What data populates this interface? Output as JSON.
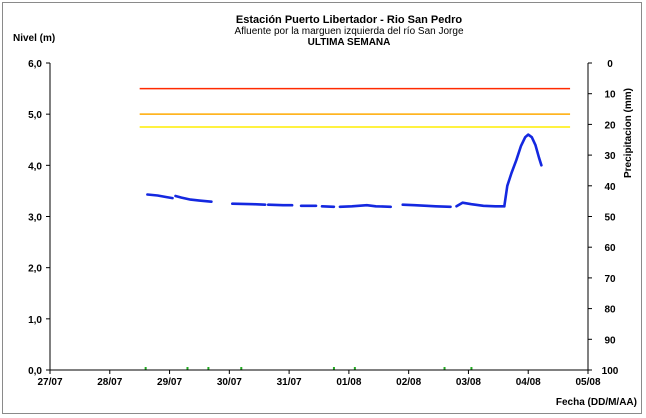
{
  "chart_data": {
    "type": "line",
    "title": "Estación Puerto Libertador - Rio San Pedro",
    "subtitle": "Afluente por la marguen izquierda del río San Jorge",
    "subtitle2": "ULTIMA SEMANA",
    "ylabel": "Nivel (m)",
    "y2label": "Precipitacion (mm)",
    "xlabel": "Fecha (DD/M/AA)",
    "ylim": [
      0,
      6
    ],
    "y2lim": [
      0,
      100
    ],
    "y2_inverted": true,
    "yticks": [
      "0,0",
      "1,0",
      "2,0",
      "3,0",
      "4,0",
      "5,0",
      "6,0"
    ],
    "y2ticks": [
      "0",
      "10",
      "20",
      "30",
      "40",
      "50",
      "60",
      "70",
      "80",
      "90",
      "100"
    ],
    "xticks": [
      "27/07",
      "28/07",
      "29/07",
      "30/07",
      "31/07",
      "01/08",
      "02/08",
      "03/08",
      "04/08",
      "05/08"
    ],
    "xlim_days": [
      0,
      9
    ],
    "grid": false,
    "thresholds": [
      {
        "value": 5.5,
        "color": "#ff2a00"
      },
      {
        "value": 5.0,
        "color": "#ffaa00"
      },
      {
        "value": 4.75,
        "color": "#ffee00"
      }
    ],
    "threshold_range_days": [
      1.5,
      8.7
    ],
    "series": [
      {
        "color": "#1428e0",
        "segments": [
          [
            [
              1.63,
              3.43
            ],
            [
              1.8,
              3.41
            ],
            [
              1.95,
              3.38
            ],
            [
              2.05,
              3.36
            ]
          ],
          [
            [
              2.1,
              3.4
            ],
            [
              2.2,
              3.37
            ],
            [
              2.35,
              3.33
            ],
            [
              2.5,
              3.31
            ],
            [
              2.7,
              3.29
            ]
          ],
          [
            [
              3.05,
              3.25
            ],
            [
              3.4,
              3.24
            ],
            [
              3.6,
              3.23
            ]
          ],
          [
            [
              3.65,
              3.23
            ],
            [
              3.9,
              3.22
            ],
            [
              4.05,
              3.22
            ]
          ],
          [
            [
              4.2,
              3.21
            ],
            [
              4.45,
              3.21
            ]
          ],
          [
            [
              4.55,
              3.2
            ],
            [
              4.75,
              3.19
            ]
          ],
          [
            [
              4.85,
              3.19
            ],
            [
              5.05,
              3.2
            ],
            [
              5.3,
              3.22
            ],
            [
              5.45,
              3.2
            ],
            [
              5.7,
              3.19
            ]
          ],
          [
            [
              5.9,
              3.23
            ],
            [
              6.1,
              3.22
            ],
            [
              6.3,
              3.21
            ],
            [
              6.45,
              3.2
            ],
            [
              6.7,
              3.19
            ]
          ],
          [
            [
              6.8,
              3.2
            ],
            [
              6.9,
              3.27
            ],
            [
              7.05,
              3.24
            ],
            [
              7.25,
              3.21
            ],
            [
              7.45,
              3.2
            ],
            [
              7.6,
              3.2
            ]
          ],
          [
            [
              7.6,
              3.2
            ],
            [
              7.65,
              3.6
            ],
            [
              7.72,
              3.85
            ],
            [
              7.8,
              4.1
            ],
            [
              7.88,
              4.38
            ],
            [
              7.95,
              4.55
            ],
            [
              8.0,
              4.6
            ],
            [
              8.06,
              4.55
            ],
            [
              8.12,
              4.4
            ],
            [
              8.18,
              4.15
            ],
            [
              8.22,
              4.0
            ]
          ]
        ]
      }
    ],
    "precip_markers_days": [
      1.6,
      2.3,
      2.65,
      3.2,
      4.75,
      5.1,
      6.6,
      7.05
    ],
    "precip_color": "#22aa22"
  }
}
